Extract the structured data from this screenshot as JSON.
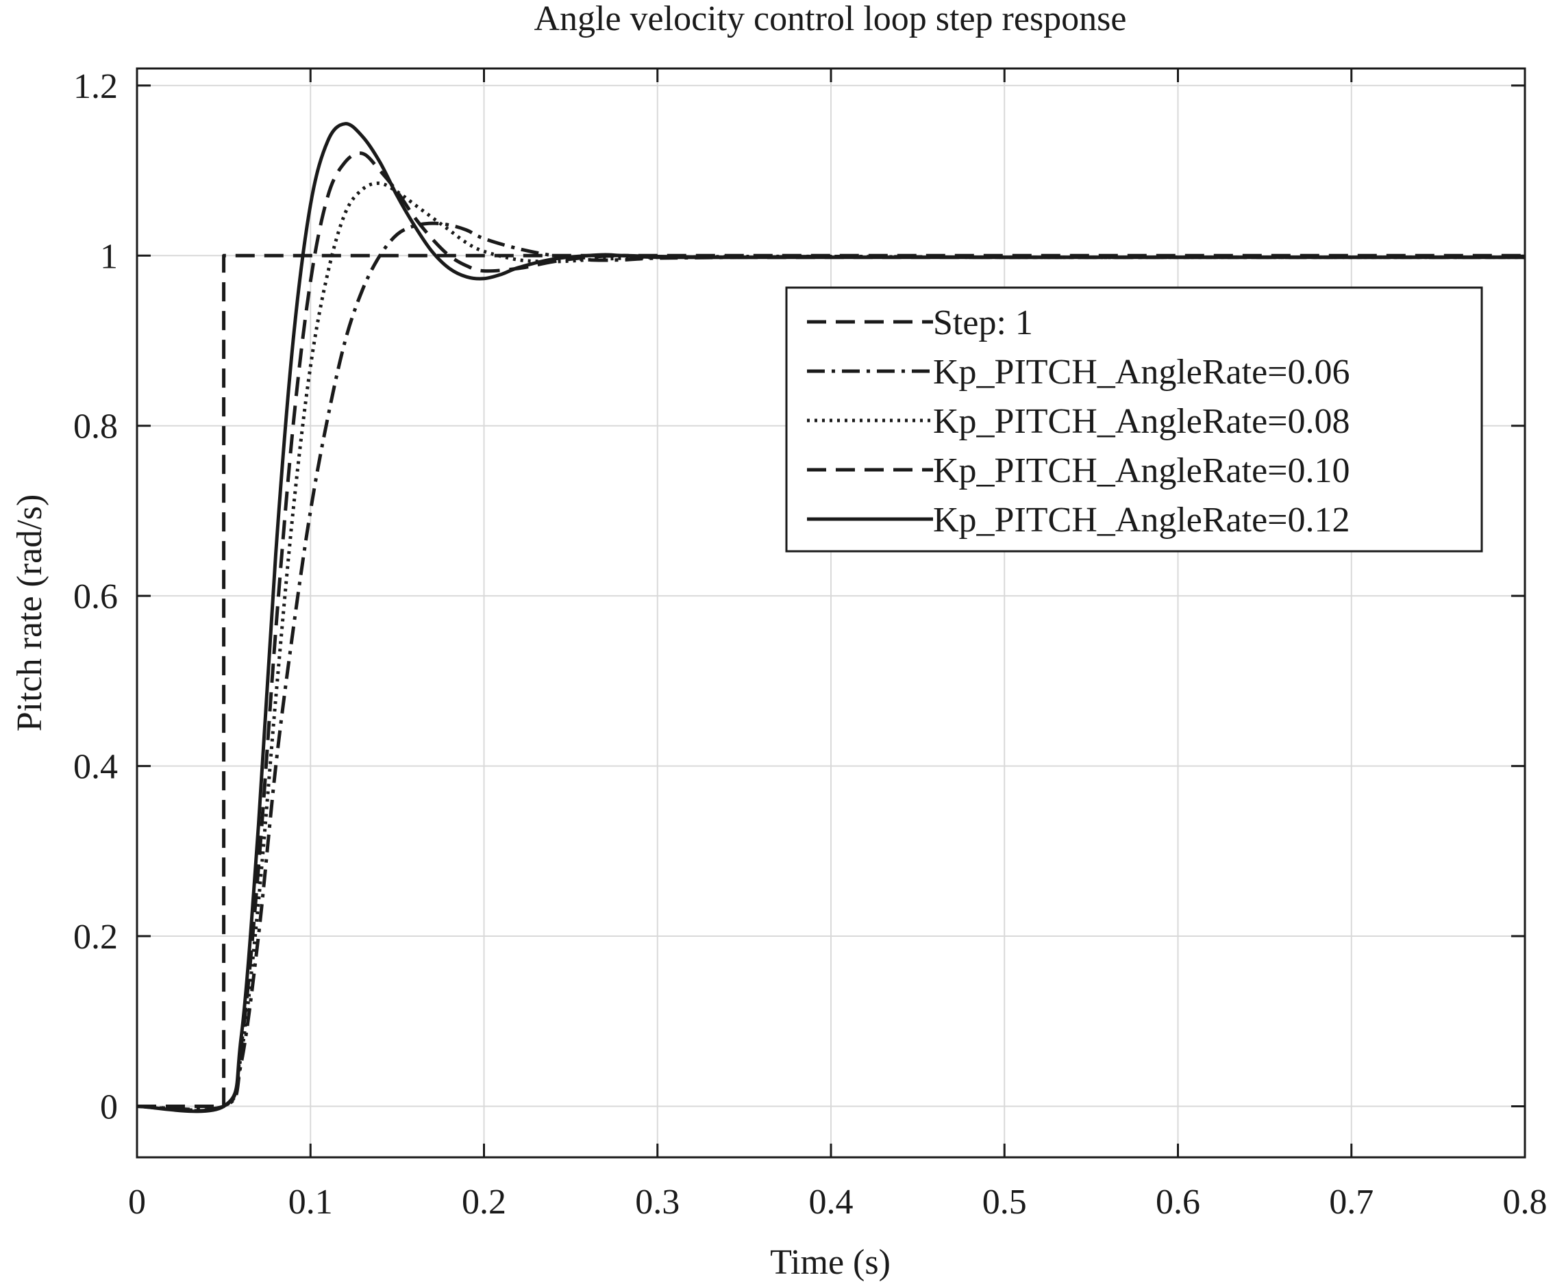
{
  "chart_data": {
    "type": "line",
    "title": "Angle velocity control loop step response",
    "xlabel": "Time (s)",
    "ylabel": "Pitch rate (rad/s)",
    "xlim": [
      0,
      0.8
    ],
    "ylim": [
      -0.06,
      1.22
    ],
    "xticks": [
      0,
      0.1,
      0.2,
      0.3,
      0.4,
      0.5,
      0.6,
      0.7,
      0.8
    ],
    "xtick_labels": [
      "0",
      "0.1",
      "0.2",
      "0.3",
      "0.4",
      "0.5",
      "0.6",
      "0.7",
      "0.8"
    ],
    "yticks": [
      0,
      0.2,
      0.4,
      0.6,
      0.8,
      1.0,
      1.2
    ],
    "ytick_labels": [
      "0",
      "0.2",
      "0.4",
      "0.6",
      "0.8",
      "1",
      "1.2"
    ],
    "grid": true,
    "legend_position": "top-right",
    "series": [
      {
        "name": "Step: 1",
        "style": "dashed",
        "x": [
          0,
          0.05,
          0.05,
          0.8
        ],
        "y": [
          0,
          0,
          1,
          1
        ]
      },
      {
        "name": "Kp_PITCH_AngleRate=0.06",
        "style": "dashdot",
        "x": [
          0,
          0.05,
          0.06,
          0.07,
          0.08,
          0.09,
          0.1,
          0.11,
          0.12,
          0.13,
          0.14,
          0.15,
          0.16,
          0.17,
          0.18,
          0.19,
          0.2,
          0.22,
          0.24,
          0.26,
          0.28,
          0.3,
          0.35,
          0.4,
          0.5,
          0.6,
          0.7,
          0.8
        ],
        "y": [
          0,
          0,
          0.05,
          0.2,
          0.4,
          0.56,
          0.7,
          0.81,
          0.9,
          0.96,
          1.0,
          1.025,
          1.035,
          1.038,
          1.036,
          1.03,
          1.02,
          1.008,
          1.0,
          0.995,
          0.995,
          0.997,
          0.998,
          0.999,
          0.998,
          0.998,
          0.998,
          0.998
        ]
      },
      {
        "name": "Kp_PITCH_AngleRate=0.08",
        "style": "dotted",
        "x": [
          0,
          0.05,
          0.06,
          0.07,
          0.08,
          0.09,
          0.1,
          0.11,
          0.12,
          0.13,
          0.14,
          0.15,
          0.16,
          0.17,
          0.18,
          0.19,
          0.2,
          0.22,
          0.24,
          0.26,
          0.28,
          0.3,
          0.35,
          0.4,
          0.5,
          0.6,
          0.7,
          0.8
        ],
        "y": [
          0,
          0,
          0.06,
          0.24,
          0.48,
          0.7,
          0.87,
          0.98,
          1.05,
          1.078,
          1.085,
          1.075,
          1.06,
          1.045,
          1.03,
          1.015,
          1.005,
          0.995,
          0.993,
          0.995,
          0.997,
          0.998,
          0.999,
          0.999,
          0.998,
          0.998,
          0.998,
          0.998
        ]
      },
      {
        "name": "Kp_PITCH_AngleRate=0.10",
        "style": "dashed",
        "x": [
          0,
          0.05,
          0.06,
          0.07,
          0.08,
          0.09,
          0.1,
          0.11,
          0.12,
          0.13,
          0.14,
          0.15,
          0.16,
          0.17,
          0.18,
          0.19,
          0.2,
          0.22,
          0.24,
          0.26,
          0.28,
          0.3,
          0.35,
          0.4,
          0.5,
          0.6,
          0.7,
          0.8
        ],
        "y": [
          0,
          0,
          0.07,
          0.28,
          0.56,
          0.8,
          0.97,
          1.07,
          1.11,
          1.12,
          1.1,
          1.075,
          1.045,
          1.02,
          1.0,
          0.988,
          0.982,
          0.985,
          0.993,
          0.998,
          1.0,
          0.999,
          0.998,
          0.998,
          0.998,
          0.998,
          0.998,
          0.998
        ]
      },
      {
        "name": "Kp_PITCH_AngleRate=0.12",
        "style": "solid",
        "x": [
          0,
          0.05,
          0.06,
          0.07,
          0.08,
          0.09,
          0.1,
          0.11,
          0.12,
          0.13,
          0.14,
          0.15,
          0.16,
          0.17,
          0.18,
          0.19,
          0.2,
          0.21,
          0.22,
          0.24,
          0.26,
          0.27,
          0.28,
          0.3,
          0.35,
          0.4,
          0.5,
          0.6,
          0.7,
          0.8
        ],
        "y": [
          0,
          0,
          0.08,
          0.33,
          0.65,
          0.9,
          1.06,
          1.135,
          1.155,
          1.14,
          1.11,
          1.07,
          1.035,
          1.005,
          0.985,
          0.975,
          0.973,
          0.978,
          0.986,
          0.996,
          1.0,
          1.001,
          1.0,
          0.998,
          0.998,
          0.998,
          0.998,
          0.998,
          0.998,
          0.998
        ]
      }
    ]
  }
}
